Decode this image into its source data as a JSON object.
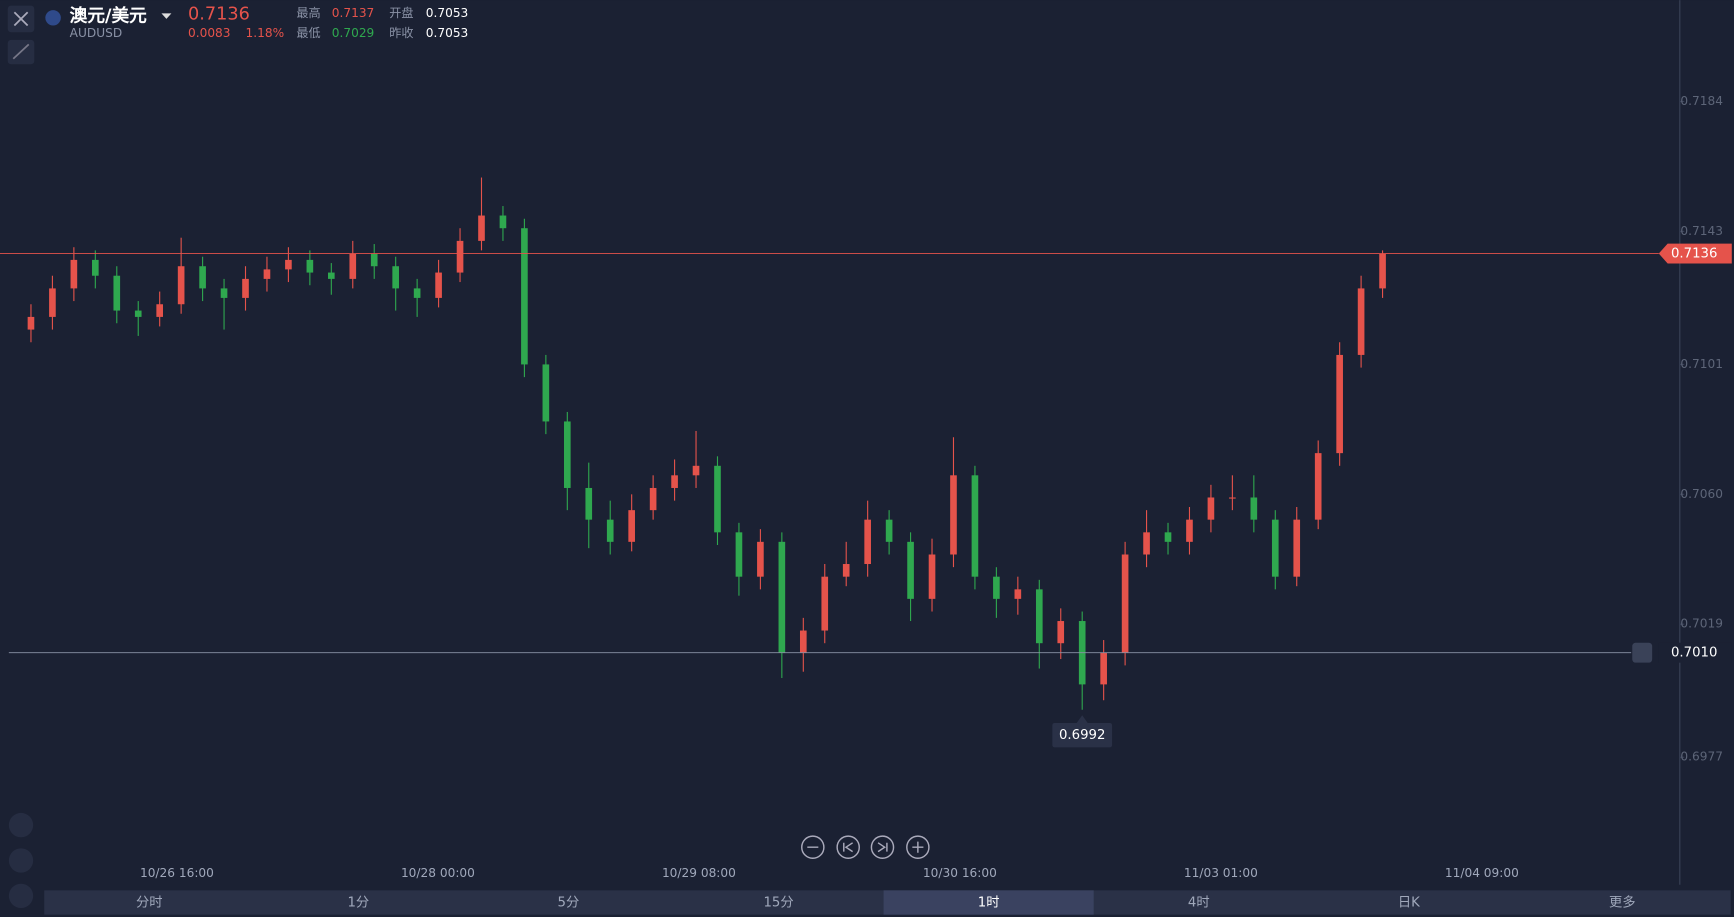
{
  "header": {
    "name": "澳元/美元",
    "symbol": "AUDUSD",
    "price": "0.7136",
    "change": "0.0083",
    "change_pct": "1.18%",
    "high_label": "最高",
    "high": "0.7137",
    "low_label": "最低",
    "low": "0.7029",
    "open_label": "开盘",
    "open": "0.7053",
    "prev_label": "昨收",
    "prev": "0.7053"
  },
  "tabs": [
    "分时",
    "1分",
    "5分",
    "15分",
    "1时",
    "4时",
    "日K",
    "更多"
  ],
  "chart_data": {
    "type": "candlestick",
    "up_color": "#e5534b",
    "down_color": "#2fa84f",
    "ylim": [
      0.695,
      0.7216
    ],
    "yticks": [
      0.7184,
      0.7143,
      0.7101,
      {
        "value": 0.706,
        "label": "0.7060"
      },
      0.7019,
      0.6977
    ],
    "x_labels": [
      "10/26 16:00",
      "10/28 00:00",
      "10/29 08:00",
      "10/30 16:00",
      "11/03 01:00",
      "11/04 09:00"
    ],
    "last_price": {
      "value": 0.7136,
      "label": "0.7136"
    },
    "alert_line": {
      "value": 0.701,
      "label": "0.7010"
    },
    "low_marker": {
      "value": 0.6992,
      "label": "0.6992"
    },
    "ohlc": [
      [
        0.7112,
        0.712,
        0.7108,
        0.7116
      ],
      [
        0.7116,
        0.7129,
        0.7112,
        0.7125
      ],
      [
        0.7125,
        0.7138,
        0.7121,
        0.7134
      ],
      [
        0.7134,
        0.7137,
        0.7125,
        0.7129
      ],
      [
        0.7129,
        0.7132,
        0.7114,
        0.7118
      ],
      [
        0.7118,
        0.7121,
        0.711,
        0.7116
      ],
      [
        0.7116,
        0.7124,
        0.7113,
        0.712
      ],
      [
        0.712,
        0.7141,
        0.7117,
        0.7132
      ],
      [
        0.7132,
        0.7135,
        0.7121,
        0.7125
      ],
      [
        0.7125,
        0.7128,
        0.7112,
        0.7122
      ],
      [
        0.7122,
        0.7132,
        0.7118,
        0.7128
      ],
      [
        0.7128,
        0.7135,
        0.7124,
        0.7131
      ],
      [
        0.7131,
        0.7138,
        0.7127,
        0.7134
      ],
      [
        0.7134,
        0.7137,
        0.7126,
        0.713
      ],
      [
        0.713,
        0.7133,
        0.7123,
        0.7128
      ],
      [
        0.7128,
        0.714,
        0.7125,
        0.7136
      ],
      [
        0.7136,
        0.7139,
        0.7128,
        0.7132
      ],
      [
        0.7132,
        0.7135,
        0.7118,
        0.7125
      ],
      [
        0.7125,
        0.7128,
        0.7116,
        0.7122
      ],
      [
        0.7122,
        0.7134,
        0.7119,
        0.713
      ],
      [
        0.713,
        0.7144,
        0.7127,
        0.714
      ],
      [
        0.714,
        0.716,
        0.7137,
        0.7148
      ],
      [
        0.7148,
        0.7151,
        0.714,
        0.7144
      ],
      [
        0.7144,
        0.7147,
        0.7097,
        0.7101
      ],
      [
        0.7101,
        0.7104,
        0.7079,
        0.7083
      ],
      [
        0.7083,
        0.7086,
        0.7055,
        0.7062
      ],
      [
        0.7062,
        0.707,
        0.7043,
        0.7052
      ],
      [
        0.7052,
        0.7058,
        0.7041,
        0.7045
      ],
      [
        0.7045,
        0.706,
        0.7042,
        0.7055
      ],
      [
        0.7055,
        0.7066,
        0.7052,
        0.7062
      ],
      [
        0.7062,
        0.7071,
        0.7058,
        0.7066
      ],
      [
        0.7066,
        0.708,
        0.7062,
        0.7069
      ],
      [
        0.7069,
        0.7072,
        0.7044,
        0.7048
      ],
      [
        0.7048,
        0.7051,
        0.7028,
        0.7034
      ],
      [
        0.7034,
        0.7049,
        0.703,
        0.7045
      ],
      [
        0.7045,
        0.7048,
        0.7002,
        0.701
      ],
      [
        0.701,
        0.7021,
        0.7004,
        0.7017
      ],
      [
        0.7017,
        0.7038,
        0.7013,
        0.7034
      ],
      [
        0.7034,
        0.7045,
        0.7031,
        0.7038
      ],
      [
        0.7038,
        0.7058,
        0.7034,
        0.7052
      ],
      [
        0.7052,
        0.7055,
        0.7041,
        0.7045
      ],
      [
        0.7045,
        0.7048,
        0.702,
        0.7027
      ],
      [
        0.7027,
        0.7046,
        0.7023,
        0.7041
      ],
      [
        0.7041,
        0.7078,
        0.7037,
        0.7066
      ],
      [
        0.7066,
        0.7069,
        0.703,
        0.7034
      ],
      [
        0.7034,
        0.7037,
        0.7021,
        0.7027
      ],
      [
        0.7027,
        0.7034,
        0.7022,
        0.703
      ],
      [
        0.703,
        0.7033,
        0.7005,
        0.7013
      ],
      [
        0.7013,
        0.7024,
        0.7008,
        0.702
      ],
      [
        0.702,
        0.7023,
        0.6992,
        0.7
      ],
      [
        0.7,
        0.7014,
        0.6995,
        0.701
      ],
      [
        0.701,
        0.7045,
        0.7006,
        0.7041
      ],
      [
        0.7041,
        0.7055,
        0.7037,
        0.7048
      ],
      [
        0.7048,
        0.7051,
        0.7041,
        0.7045
      ],
      [
        0.7045,
        0.7056,
        0.7041,
        0.7052
      ],
      [
        0.7052,
        0.7063,
        0.7048,
        0.7059
      ],
      [
        0.7059,
        0.7066,
        0.7055,
        0.7059
      ],
      [
        0.7059,
        0.7066,
        0.7048,
        0.7052
      ],
      [
        0.7052,
        0.7055,
        0.703,
        0.7034
      ],
      [
        0.7034,
        0.7056,
        0.7031,
        0.7052
      ],
      [
        0.7052,
        0.7077,
        0.7049,
        0.7073
      ],
      [
        0.7073,
        0.7108,
        0.7069,
        0.7104
      ],
      [
        0.7104,
        0.7129,
        0.71,
        0.7125
      ],
      [
        0.7125,
        0.7137,
        0.7122,
        0.7136
      ]
    ]
  }
}
